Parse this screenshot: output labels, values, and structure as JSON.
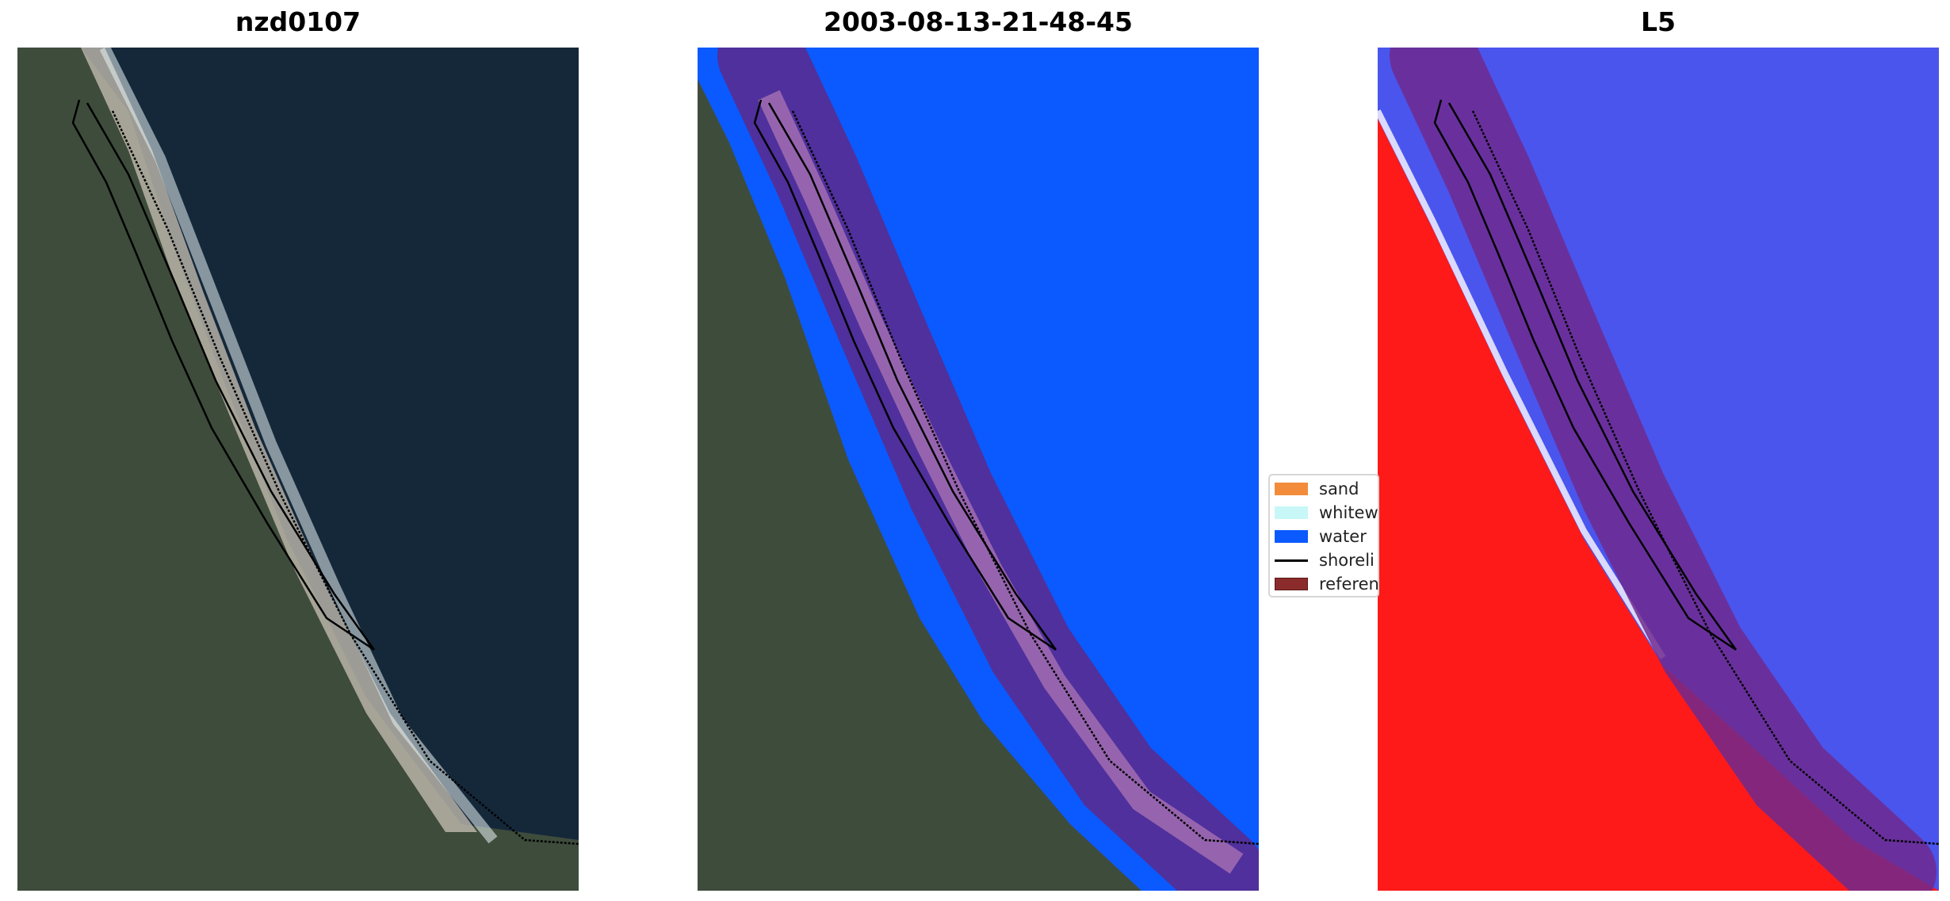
{
  "titles": {
    "left": "nzd0107",
    "middle": "2003-08-13-21-48-45",
    "right": "L5"
  },
  "legend": {
    "items": [
      {
        "label": "sand",
        "color": "#f28c3a"
      },
      {
        "label": "whitew",
        "color": "#c8f7f7"
      },
      {
        "label": "water",
        "color": "#0a5aff"
      },
      {
        "label": "shoreli",
        "color": "#000000"
      },
      {
        "label": "referen",
        "color": "#8b2b2b"
      }
    ]
  },
  "colors": {
    "ocean": "#15283a",
    "land": "#3e4c3c",
    "water_class": "#0a5aff",
    "buffer": "#5a2a8e",
    "index_land": "#ff1a1a",
    "index_water": "#4a55ee"
  }
}
